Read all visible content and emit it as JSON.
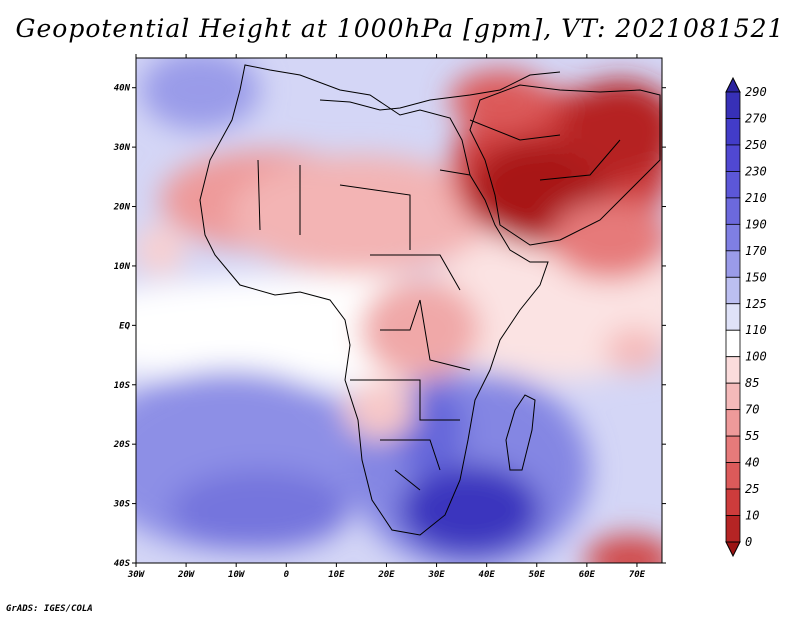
{
  "title": "Geopotential Height at 1000hPa [gpm], VT: 2021081521",
  "credit": "GrADS: IGES/COLA",
  "chart_data": {
    "type": "heatmap",
    "title": "Geopotential Height at 1000hPa [gpm], VT: 2021081521",
    "variable": "Geopotential Height",
    "level": "1000hPa",
    "units": "gpm",
    "valid_time": "2021081521",
    "lon_range": [
      -30,
      75
    ],
    "lat_range": [
      -40,
      45
    ],
    "x_ticks": [
      "30W",
      "20W",
      "10W",
      "0",
      "10E",
      "20E",
      "30E",
      "40E",
      "50E",
      "60E",
      "70E"
    ],
    "x_tick_values": [
      -30,
      -20,
      -10,
      0,
      10,
      20,
      30,
      40,
      50,
      60,
      70
    ],
    "y_ticks": [
      "40N",
      "30N",
      "20N",
      "10N",
      "EQ",
      "10S",
      "20S",
      "30S",
      "40S"
    ],
    "y_tick_values": [
      40,
      30,
      20,
      10,
      0,
      -10,
      -20,
      -30,
      -40
    ],
    "colorbar": {
      "labels": [
        "290",
        "270",
        "250",
        "230",
        "210",
        "190",
        "170",
        "150",
        "125",
        "110",
        "100",
        "85",
        "70",
        "55",
        "40",
        "25",
        "10",
        "0"
      ],
      "levels": [
        290,
        270,
        250,
        230,
        210,
        190,
        170,
        150,
        125,
        110,
        100,
        85,
        70,
        55,
        40,
        25,
        10,
        0
      ],
      "colors": [
        "#2b239f",
        "#3730b7",
        "#423cc8",
        "#5048d2",
        "#5c57d8",
        "#6c69dd",
        "#7f7fe3",
        "#9a9be9",
        "#bcbff1",
        "#dfe2f8",
        "#ffffff",
        "#fbdcdc",
        "#f5baba",
        "#ee9a9a",
        "#e67a7a",
        "#dc5a5a",
        "#cd3c3c",
        "#b52424",
        "#9b1414"
      ]
    },
    "features": [
      {
        "name": "High heights (blue) over South Atlantic and southern Indian Ocean",
        "approx_gpm": 230
      },
      {
        "name": "Low heights (dark red) over Arabian Peninsula and Persian Gulf",
        "approx_gpm": 10
      },
      {
        "name": "Moderately low heights (red) over Sahara / Sahel",
        "approx_gpm": 70
      },
      {
        "name": "Neutral heights (white) along equatorial Atlantic",
        "approx_gpm": 110
      }
    ]
  }
}
